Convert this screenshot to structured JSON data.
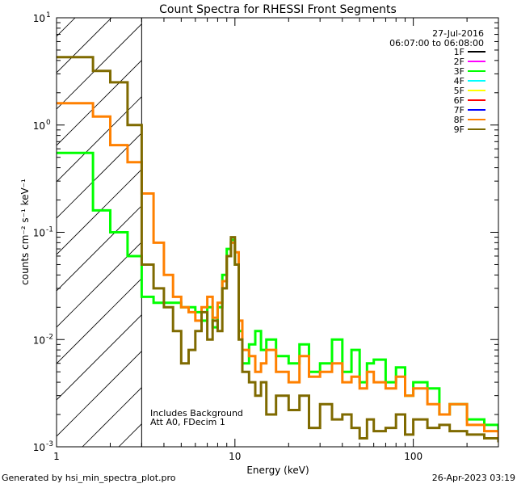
{
  "chart_data": {
    "type": "line",
    "title": "Count Spectra for RHESSI Front Segments",
    "xlabel": "Energy (keV)",
    "ylabel": "counts cm⁻² s⁻¹ keV⁻¹",
    "xscale": "log",
    "yscale": "log",
    "xlim": [
      1,
      300
    ],
    "ylim": [
      0.001,
      10
    ],
    "x_tick_labels": [
      {
        "value": 1,
        "label": "1"
      },
      {
        "value": 10,
        "label": "10"
      },
      {
        "value": 100,
        "label": "100"
      }
    ],
    "y_tick_labels": [
      {
        "value": 0.001,
        "base": "10",
        "exp": "-3"
      },
      {
        "value": 0.01,
        "base": "10",
        "exp": "-2"
      },
      {
        "value": 0.1,
        "base": "10",
        "exp": "-1"
      },
      {
        "value": 1,
        "base": "10",
        "exp": "0"
      },
      {
        "value": 10,
        "base": "10",
        "exp": "1"
      }
    ],
    "hatched_region": {
      "x_min": 1,
      "x_max": 3
    },
    "date": "27-Jul-2016",
    "time_range": "06:07:00 to 06:08:00",
    "annotations": [
      "Includes Background",
      "Att A0, FDecim 1"
    ],
    "legend": [
      {
        "name": "1F",
        "color": "#000000"
      },
      {
        "name": "2F",
        "color": "#ff00ff"
      },
      {
        "name": "3F",
        "color": "#00ff00"
      },
      {
        "name": "4F",
        "color": "#00ffff"
      },
      {
        "name": "5F",
        "color": "#ffff00"
      },
      {
        "name": "6F",
        "color": "#ff0000"
      },
      {
        "name": "7F",
        "color": "#0000ff"
      },
      {
        "name": "8F",
        "color": "#ff8000"
      },
      {
        "name": "9F",
        "color": "#7f6a00"
      }
    ],
    "series": [
      {
        "name": "3F",
        "color": "#00ff00",
        "x": [
          1.0,
          1.3,
          1.6,
          2.0,
          2.5,
          3.0,
          3.5,
          4.0,
          4.5,
          5.0,
          5.5,
          6.0,
          6.5,
          7.0,
          7.5,
          8.0,
          8.5,
          9.0,
          9.5,
          10.0,
          10.5,
          11.0,
          12.0,
          13.0,
          14.0,
          15.0,
          17.0,
          20.0,
          23.0,
          26.0,
          30.0,
          35.0,
          40.0,
          45.0,
          50.0,
          55.0,
          60.0,
          70.0,
          80.0,
          90.0,
          100.0,
          120.0,
          140.0,
          160.0,
          200.0,
          250.0,
          300.0
        ],
        "y": [
          0.55,
          0.55,
          0.16,
          0.1,
          0.06,
          0.025,
          0.022,
          0.022,
          0.022,
          0.02,
          0.02,
          0.018,
          0.015,
          0.02,
          0.013,
          0.02,
          0.04,
          0.07,
          0.085,
          0.05,
          0.012,
          0.006,
          0.009,
          0.012,
          0.008,
          0.01,
          0.007,
          0.006,
          0.009,
          0.005,
          0.006,
          0.01,
          0.005,
          0.008,
          0.004,
          0.006,
          0.0065,
          0.004,
          0.0055,
          0.003,
          0.004,
          0.0035,
          0.002,
          0.0025,
          0.0018,
          0.0016,
          0.0012
        ]
      },
      {
        "name": "8F",
        "color": "#ff8000",
        "x": [
          1.0,
          1.3,
          1.6,
          2.0,
          2.5,
          3.0,
          3.5,
          4.0,
          4.5,
          5.0,
          5.5,
          6.0,
          6.5,
          7.0,
          7.5,
          8.0,
          8.5,
          9.0,
          9.5,
          10.0,
          10.5,
          11.0,
          12.0,
          13.0,
          14.0,
          15.0,
          17.0,
          20.0,
          23.0,
          26.0,
          30.0,
          35.0,
          40.0,
          45.0,
          50.0,
          55.0,
          60.0,
          70.0,
          80.0,
          90.0,
          100.0,
          120.0,
          140.0,
          160.0,
          200.0,
          250.0,
          300.0
        ],
        "y": [
          1.6,
          1.6,
          1.2,
          0.65,
          0.45,
          0.23,
          0.08,
          0.04,
          0.025,
          0.02,
          0.018,
          0.015,
          0.02,
          0.025,
          0.016,
          0.022,
          0.035,
          0.06,
          0.08,
          0.065,
          0.015,
          0.008,
          0.007,
          0.005,
          0.006,
          0.008,
          0.005,
          0.004,
          0.007,
          0.0045,
          0.005,
          0.006,
          0.004,
          0.0045,
          0.0035,
          0.005,
          0.004,
          0.0035,
          0.0045,
          0.003,
          0.0035,
          0.0025,
          0.002,
          0.0025,
          0.0016,
          0.0014,
          0.0012
        ]
      },
      {
        "name": "9F",
        "color": "#7f6a00",
        "x": [
          1.0,
          1.3,
          1.6,
          2.0,
          2.5,
          3.0,
          3.5,
          4.0,
          4.5,
          5.0,
          5.5,
          6.0,
          6.5,
          7.0,
          7.5,
          8.0,
          8.5,
          9.0,
          9.5,
          10.0,
          10.5,
          11.0,
          12.0,
          13.0,
          14.0,
          15.0,
          17.0,
          20.0,
          23.0,
          26.0,
          30.0,
          35.0,
          40.0,
          45.0,
          50.0,
          55.0,
          60.0,
          70.0,
          80.0,
          90.0,
          100.0,
          120.0,
          140.0,
          160.0,
          200.0,
          250.0,
          300.0
        ],
        "y": [
          4.3,
          4.3,
          3.2,
          2.5,
          1.0,
          0.05,
          0.03,
          0.02,
          0.012,
          0.006,
          0.008,
          0.012,
          0.018,
          0.01,
          0.015,
          0.012,
          0.03,
          0.06,
          0.09,
          0.05,
          0.01,
          0.005,
          0.004,
          0.003,
          0.004,
          0.002,
          0.003,
          0.0022,
          0.003,
          0.0015,
          0.0025,
          0.0018,
          0.002,
          0.0015,
          0.0012,
          0.0018,
          0.0014,
          0.0015,
          0.002,
          0.0013,
          0.0018,
          0.0015,
          0.0016,
          0.0014,
          0.0013,
          0.0012,
          0.0011
        ]
      }
    ]
  },
  "footer": {
    "generated_by": "Generated by hsi_min_spectra_plot.pro",
    "timestamp": "26-Apr-2023 03:19"
  }
}
